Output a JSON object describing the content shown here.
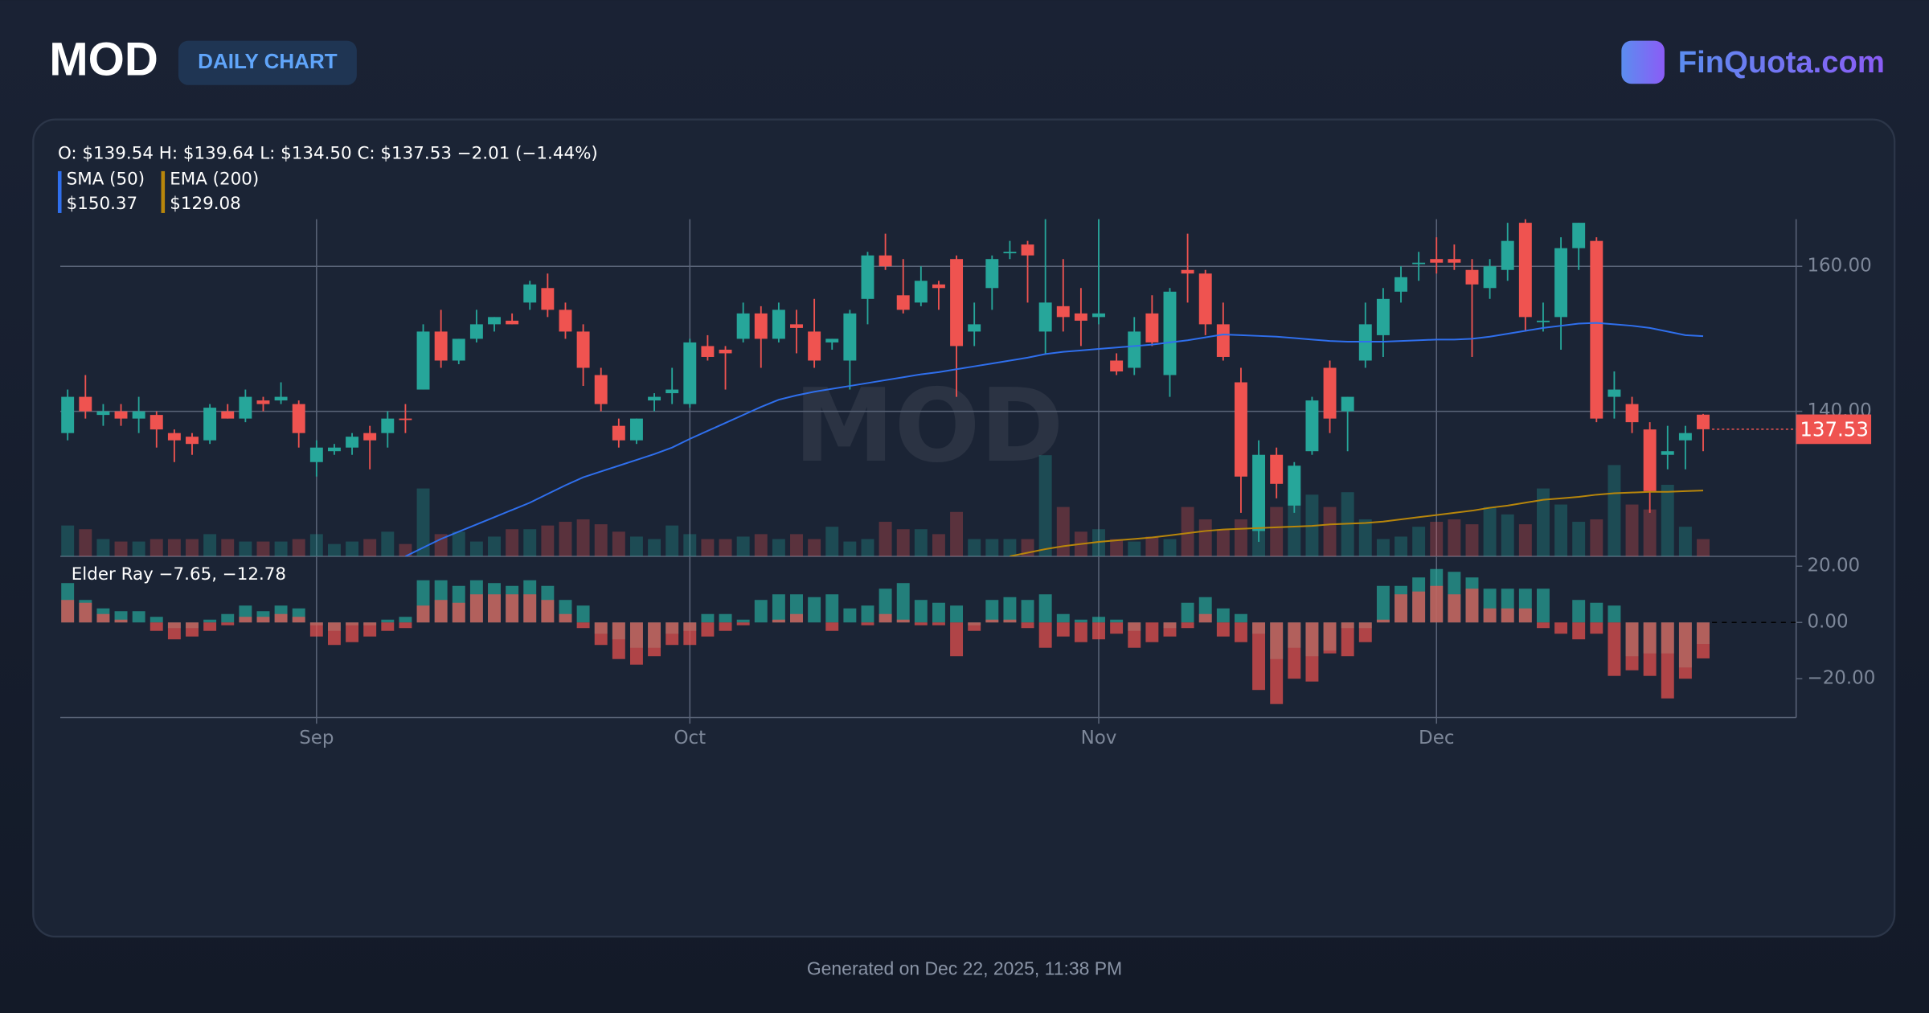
{
  "header": {
    "title": "MOD",
    "badge": "DAILY CHART",
    "brand": "FinQuota.com"
  },
  "footer": "Generated on Dec 22, 2025, 11:38 PM",
  "chart_data": {
    "type": "candlestick",
    "watermark": "MOD",
    "ohlc_label": "O: $139.54 H: $139.64 L: $134.50 C: $137.53 −2.01 (−1.44%)",
    "up_color": "#26a69a",
    "down_color": "#ef5350",
    "xlim": [
      -0.415,
      97.23
    ],
    "xticks": [
      {
        "value": 14,
        "label": "Sep"
      },
      {
        "value": 35,
        "label": "Oct"
      },
      {
        "value": 58,
        "label": "Nov"
      },
      {
        "value": 77,
        "label": "Dec"
      }
    ],
    "ylim": [
      120,
      166.5
    ],
    "yticks": [
      {
        "value": 140,
        "label": "140.00"
      },
      {
        "value": 160,
        "label": "160.00"
      }
    ],
    "grid": true,
    "open": [
      137,
      142,
      139.5,
      140,
      139,
      139.5,
      137,
      136.5,
      136,
      140,
      139,
      141.5,
      141.5,
      141,
      133,
      134.5,
      135,
      137,
      137,
      139,
      143,
      151,
      147,
      150,
      152,
      152.5,
      155,
      157,
      154,
      151,
      145,
      138,
      136,
      141.5,
      142.5,
      141,
      149,
      148.5,
      150,
      153.5,
      150,
      152,
      151,
      149.5,
      147,
      155.5,
      161.5,
      156,
      155,
      157.5,
      161,
      151,
      157,
      162,
      163,
      151,
      154.5,
      153.5,
      153,
      147,
      146,
      153.5,
      145,
      159.5,
      159,
      152,
      144,
      123.5,
      134,
      127,
      134.5,
      146,
      140,
      147,
      150.5,
      156.5,
      160.5,
      161,
      161,
      159.5,
      157,
      159.5,
      166,
      152.5,
      153,
      162.5,
      163.5,
      142,
      141,
      137.5,
      134,
      136,
      139.54
    ],
    "high": [
      143,
      145,
      141,
      141,
      142,
      140,
      137.5,
      137,
      141,
      141,
      143,
      142,
      144,
      141.5,
      136,
      135.5,
      137,
      138,
      140,
      141,
      152,
      154,
      150,
      154,
      153,
      153.5,
      158,
      159,
      155,
      152,
      146,
      139,
      139,
      142.5,
      146,
      150,
      150.5,
      149,
      155,
      154.5,
      155,
      154,
      155.5,
      150,
      154,
      162,
      164.5,
      161,
      160,
      158,
      161.5,
      155,
      161.5,
      163.5,
      163.5,
      167,
      161,
      157,
      167,
      148,
      153,
      156,
      157,
      164.5,
      159.5,
      155,
      146,
      136,
      135,
      133,
      142,
      147,
      142,
      155,
      157,
      160,
      162,
      164,
      163,
      161,
      161,
      166,
      166.5,
      155,
      164,
      166,
      164,
      145.5,
      142,
      138.5,
      138,
      138,
      139.64
    ],
    "low": [
      136,
      139,
      138,
      138,
      137,
      135,
      133,
      134,
      135.5,
      139,
      138.5,
      140,
      141,
      135,
      131,
      134,
      134,
      132,
      135,
      137,
      143,
      146,
      146.5,
      149.5,
      151,
      152,
      154,
      153,
      150,
      143.5,
      140,
      135,
      135.5,
      140,
      141,
      140.5,
      147,
      143,
      149.5,
      146,
      149.5,
      148,
      146,
      148.5,
      143,
      152,
      159.5,
      153.5,
      154.5,
      154,
      142,
      149,
      154,
      161,
      155,
      148,
      151,
      149,
      152,
      145,
      145,
      149,
      142,
      155,
      150.5,
      147,
      126,
      122,
      128,
      126,
      134,
      137,
      134.5,
      146,
      147.5,
      155,
      158,
      159,
      159.5,
      147.5,
      155.5,
      158,
      151,
      151,
      148.5,
      159.5,
      138.5,
      139,
      137,
      126,
      132,
      132,
      134.5
    ],
    "close": [
      142,
      140,
      140,
      139,
      140,
      137.5,
      136,
      135.5,
      140.5,
      139,
      142,
      141,
      142,
      137,
      135,
      135,
      136.5,
      136,
      139,
      138.8,
      151,
      147,
      150,
      152,
      153,
      152,
      157.5,
      154,
      151,
      146,
      141,
      136,
      139,
      142,
      143,
      149.5,
      147.5,
      148,
      153.5,
      150,
      154,
      151.5,
      147,
      150,
      153.5,
      161.5,
      160,
      154,
      158,
      157,
      149,
      152,
      161,
      162,
      161.5,
      155,
      153,
      152.5,
      153.5,
      145.5,
      151,
      149.5,
      156.5,
      159,
      152,
      147.5,
      131,
      134,
      130,
      132.5,
      141.5,
      139,
      142,
      152,
      155.5,
      158.5,
      160.5,
      160.5,
      160.5,
      157.5,
      160,
      163.5,
      153,
      152.5,
      162.5,
      166,
      139,
      143,
      138.5,
      129,
      134.5,
      137,
      137.53
    ],
    "volume": [
      25,
      22,
      14,
      12,
      12,
      14,
      14,
      14,
      18,
      14,
      12,
      12,
      12,
      14,
      18,
      10,
      12,
      14,
      20,
      10,
      55,
      18,
      20,
      12,
      16,
      22,
      22,
      25,
      28,
      30,
      26,
      20,
      16,
      14,
      25,
      18,
      14,
      14,
      16,
      18,
      14,
      18,
      14,
      24,
      12,
      14,
      28,
      22,
      22,
      18,
      36,
      14,
      14,
      14,
      14,
      82,
      40,
      20,
      22,
      14,
      12,
      16,
      14,
      40,
      30,
      22,
      30,
      45,
      40,
      55,
      50,
      40,
      52,
      30,
      14,
      16,
      24,
      28,
      30,
      26,
      40,
      34,
      26,
      55,
      42,
      28,
      30,
      74,
      42,
      38,
      58,
      24,
      14
    ],
    "overlays": [
      {
        "name": "SMA (50)",
        "value_label": "$150.37",
        "color": "#2f6fed",
        "values": [
          null,
          null,
          null,
          null,
          null,
          null,
          null,
          null,
          null,
          null,
          null,
          null,
          null,
          null,
          null,
          null,
          null,
          null,
          null,
          120.0,
          121.2,
          122.4,
          123.4,
          124.4,
          125.4,
          126.4,
          127.4,
          128.6,
          129.8,
          130.9,
          131.7,
          132.5,
          133.3,
          134.1,
          135.0,
          136.2,
          137.3,
          138.4,
          139.5,
          140.6,
          141.6,
          142.2,
          142.7,
          143.1,
          143.5,
          143.9,
          144.3,
          144.7,
          145.1,
          145.4,
          145.8,
          146.2,
          146.6,
          147.0,
          147.4,
          147.9,
          148.2,
          148.4,
          148.6,
          148.8,
          149.0,
          149.2,
          149.5,
          149.8,
          150.2,
          150.6,
          150.5,
          150.4,
          150.3,
          150.1,
          149.9,
          149.7,
          149.6,
          149.6,
          149.6,
          149.7,
          149.8,
          149.9,
          149.9,
          150.0,
          150.3,
          150.7,
          151.1,
          151.5,
          151.8,
          152.1,
          152.2,
          152.0,
          151.8,
          151.5,
          151.0,
          150.5,
          150.37
        ]
      },
      {
        "name": "EMA (200)",
        "value_label": "$129.08",
        "color": "#b8860b",
        "values": [
          null,
          null,
          null,
          null,
          null,
          null,
          null,
          null,
          null,
          null,
          null,
          null,
          null,
          null,
          null,
          null,
          null,
          null,
          null,
          null,
          null,
          null,
          null,
          null,
          null,
          null,
          null,
          null,
          null,
          null,
          null,
          null,
          null,
          null,
          null,
          null,
          null,
          null,
          null,
          null,
          null,
          null,
          null,
          null,
          null,
          null,
          null,
          null,
          null,
          null,
          null,
          null,
          null,
          120.0,
          120.5,
          121.0,
          121.4,
          121.7,
          122.0,
          122.2,
          122.4,
          122.6,
          122.9,
          123.2,
          123.5,
          123.7,
          123.8,
          123.9,
          124.0,
          124.1,
          124.2,
          124.4,
          124.5,
          124.6,
          124.8,
          125.1,
          125.4,
          125.7,
          126.0,
          126.3,
          126.7,
          127.0,
          127.4,
          127.8,
          128.0,
          128.2,
          128.5,
          128.7,
          128.8,
          128.9,
          128.9,
          129.0,
          129.08
        ]
      }
    ],
    "indicator": {
      "title": "Elder Ray −7.65, −12.78",
      "ylim": [
        -33.8,
        23.5
      ],
      "yticks": [
        {
          "value": 20,
          "label": "20.00"
        },
        {
          "value": 0,
          "label": "0.00"
        },
        {
          "value": -20,
          "label": "−20.00"
        }
      ],
      "bull_color": "#26a69a",
      "bear_color": "#ef5350",
      "bull_power": [
        14,
        8,
        5,
        4,
        4,
        2,
        -2,
        -2,
        1,
        3,
        6,
        4,
        6,
        5,
        -1,
        -3,
        -1,
        -1,
        1,
        2,
        15,
        15,
        13,
        15,
        14,
        13,
        15,
        13,
        8,
        6,
        -4,
        -6,
        -9,
        -9,
        -4,
        -3,
        3,
        3,
        1,
        8,
        10,
        10,
        9,
        10,
        5,
        6,
        12,
        14,
        8,
        7,
        6,
        -1,
        8,
        9,
        8,
        10,
        3,
        1,
        2,
        1,
        -3,
        0,
        -2,
        7,
        9,
        5,
        3,
        -4,
        -13,
        -9,
        -12,
        -10,
        -2,
        -2,
        13,
        13,
        16,
        19,
        18,
        16,
        12,
        12,
        12,
        12,
        0,
        8,
        7,
        6,
        -12,
        -11,
        -11,
        -16,
        -7.65
      ],
      "bear_power": [
        8,
        7,
        3,
        1,
        0,
        -3,
        -6,
        -5,
        -3,
        -1,
        2,
        2,
        3,
        2,
        -5,
        -8,
        -7,
        -5,
        -3,
        -2,
        6,
        8,
        7,
        10,
        10,
        10,
        10,
        8,
        3,
        -2,
        -8,
        -13,
        -15,
        -12,
        -8,
        -8,
        -5,
        -3,
        -1,
        0,
        1,
        3,
        0,
        -3,
        0,
        -1,
        3,
        1,
        -1,
        -1,
        -12,
        -3,
        1,
        1,
        -2,
        -9,
        -5,
        -7,
        -6,
        -4,
        -9,
        -7,
        -5,
        -2,
        3,
        -5,
        -7,
        -24,
        -29,
        -20,
        -21,
        -11,
        -12,
        -7,
        1,
        10,
        11,
        13,
        10,
        12,
        5,
        5,
        5,
        -2,
        -4,
        -6,
        -4,
        -19,
        -17,
        -19,
        -27,
        -20,
        -12.78
      ]
    }
  }
}
